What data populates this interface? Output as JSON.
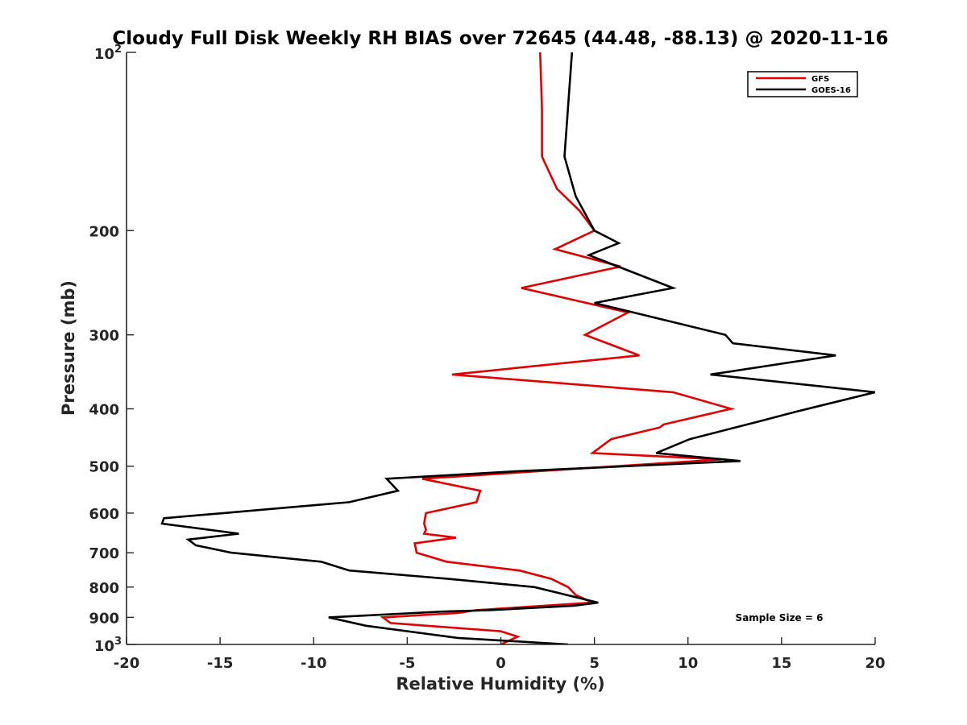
{
  "chart_data": {
    "type": "line",
    "title": "Cloudy Full Disk Weekly RH BIAS over 72645 (44.48, -88.13) @ 2020-11-16",
    "xlabel": "Relative Humidity (%)",
    "ylabel": "Pressure (mb)",
    "xlim": [
      -20,
      20
    ],
    "ylim": [
      100,
      1000
    ],
    "yscale": "log",
    "y_reversed": true,
    "xticks": [
      -20,
      -15,
      -10,
      -5,
      0,
      5,
      10,
      15,
      20
    ],
    "xtick_labels": [
      "-20",
      "-15",
      "-10",
      "-5",
      "0",
      "5",
      "10",
      "15",
      "20"
    ],
    "yticks": [
      200,
      300,
      400,
      500,
      600,
      700,
      800,
      900
    ],
    "ytick_labels": [
      "200",
      "300",
      "400",
      "500",
      "600",
      "700",
      "800",
      "900"
    ],
    "ytick_major": [
      {
        "base": "10",
        "exp": "2",
        "value": 100
      },
      {
        "base": "10",
        "exp": "3",
        "value": 1000
      }
    ],
    "grid": false,
    "legend_position": "top-right",
    "annotation": "Sample Size = 6",
    "series": [
      {
        "name": "GFS",
        "color": "#e00000",
        "points": [
          [
            2.1,
            100
          ],
          [
            2.2,
            125
          ],
          [
            2.2,
            150
          ],
          [
            3.0,
            170
          ],
          [
            4.2,
            185
          ],
          [
            5.0,
            200
          ],
          [
            2.9,
            215
          ],
          [
            6.4,
            230
          ],
          [
            1.1,
            250
          ],
          [
            6.8,
            275
          ],
          [
            4.5,
            300
          ],
          [
            7.4,
            325
          ],
          [
            -2.6,
            350
          ],
          [
            9.2,
            375
          ],
          [
            12.3,
            400
          ],
          [
            8.7,
            425
          ],
          [
            8.5,
            430
          ],
          [
            5.9,
            450
          ],
          [
            4.9,
            475
          ],
          [
            11.8,
            487
          ],
          [
            -4.2,
            525
          ],
          [
            -1.1,
            550
          ],
          [
            -1.3,
            575
          ],
          [
            -4.0,
            600
          ],
          [
            -4.1,
            625
          ],
          [
            -4.0,
            640
          ],
          [
            -4.1,
            650
          ],
          [
            -2.4,
            660
          ],
          [
            -4.6,
            675
          ],
          [
            -4.5,
            700
          ],
          [
            -2.9,
            725
          ],
          [
            1.0,
            750
          ],
          [
            2.7,
            775
          ],
          [
            3.6,
            800
          ],
          [
            4.0,
            825
          ],
          [
            4.9,
            850
          ],
          [
            -1.3,
            875
          ],
          [
            -2.3,
            885
          ],
          [
            -6.3,
            900
          ],
          [
            -5.9,
            920
          ],
          [
            0.0,
            950
          ],
          [
            0.9,
            970
          ],
          [
            0.0,
            1000
          ]
        ]
      },
      {
        "name": "GOES-16",
        "color": "#000000",
        "points": [
          [
            3.8,
            100
          ],
          [
            3.4,
            150
          ],
          [
            4.0,
            175
          ],
          [
            5.0,
            200
          ],
          [
            6.3,
            210
          ],
          [
            4.7,
            220
          ],
          [
            9.2,
            250
          ],
          [
            5.0,
            265
          ],
          [
            12.0,
            300
          ],
          [
            12.4,
            310
          ],
          [
            17.9,
            325
          ],
          [
            11.2,
            350
          ],
          [
            20.0,
            375
          ],
          [
            15.7,
            405
          ],
          [
            13.8,
            420
          ],
          [
            10.1,
            450
          ],
          [
            8.3,
            475
          ],
          [
            12.8,
            490
          ],
          [
            0.8,
            510
          ],
          [
            -6.1,
            525
          ],
          [
            -5.5,
            550
          ],
          [
            -8.1,
            575
          ],
          [
            -14.8,
            600
          ],
          [
            -18.0,
            612
          ],
          [
            -18.1,
            625
          ],
          [
            -14.0,
            650
          ],
          [
            -16.7,
            665
          ],
          [
            -16.3,
            680
          ],
          [
            -14.4,
            700
          ],
          [
            -9.6,
            725
          ],
          [
            -8.1,
            750
          ],
          [
            -2.8,
            775
          ],
          [
            1.8,
            800
          ],
          [
            5.2,
            850
          ],
          [
            3.9,
            860
          ],
          [
            -0.6,
            875
          ],
          [
            -3.1,
            880
          ],
          [
            -9.2,
            900
          ],
          [
            -7.2,
            930
          ],
          [
            -2.3,
            975
          ],
          [
            3.6,
            1000
          ]
        ]
      }
    ]
  }
}
